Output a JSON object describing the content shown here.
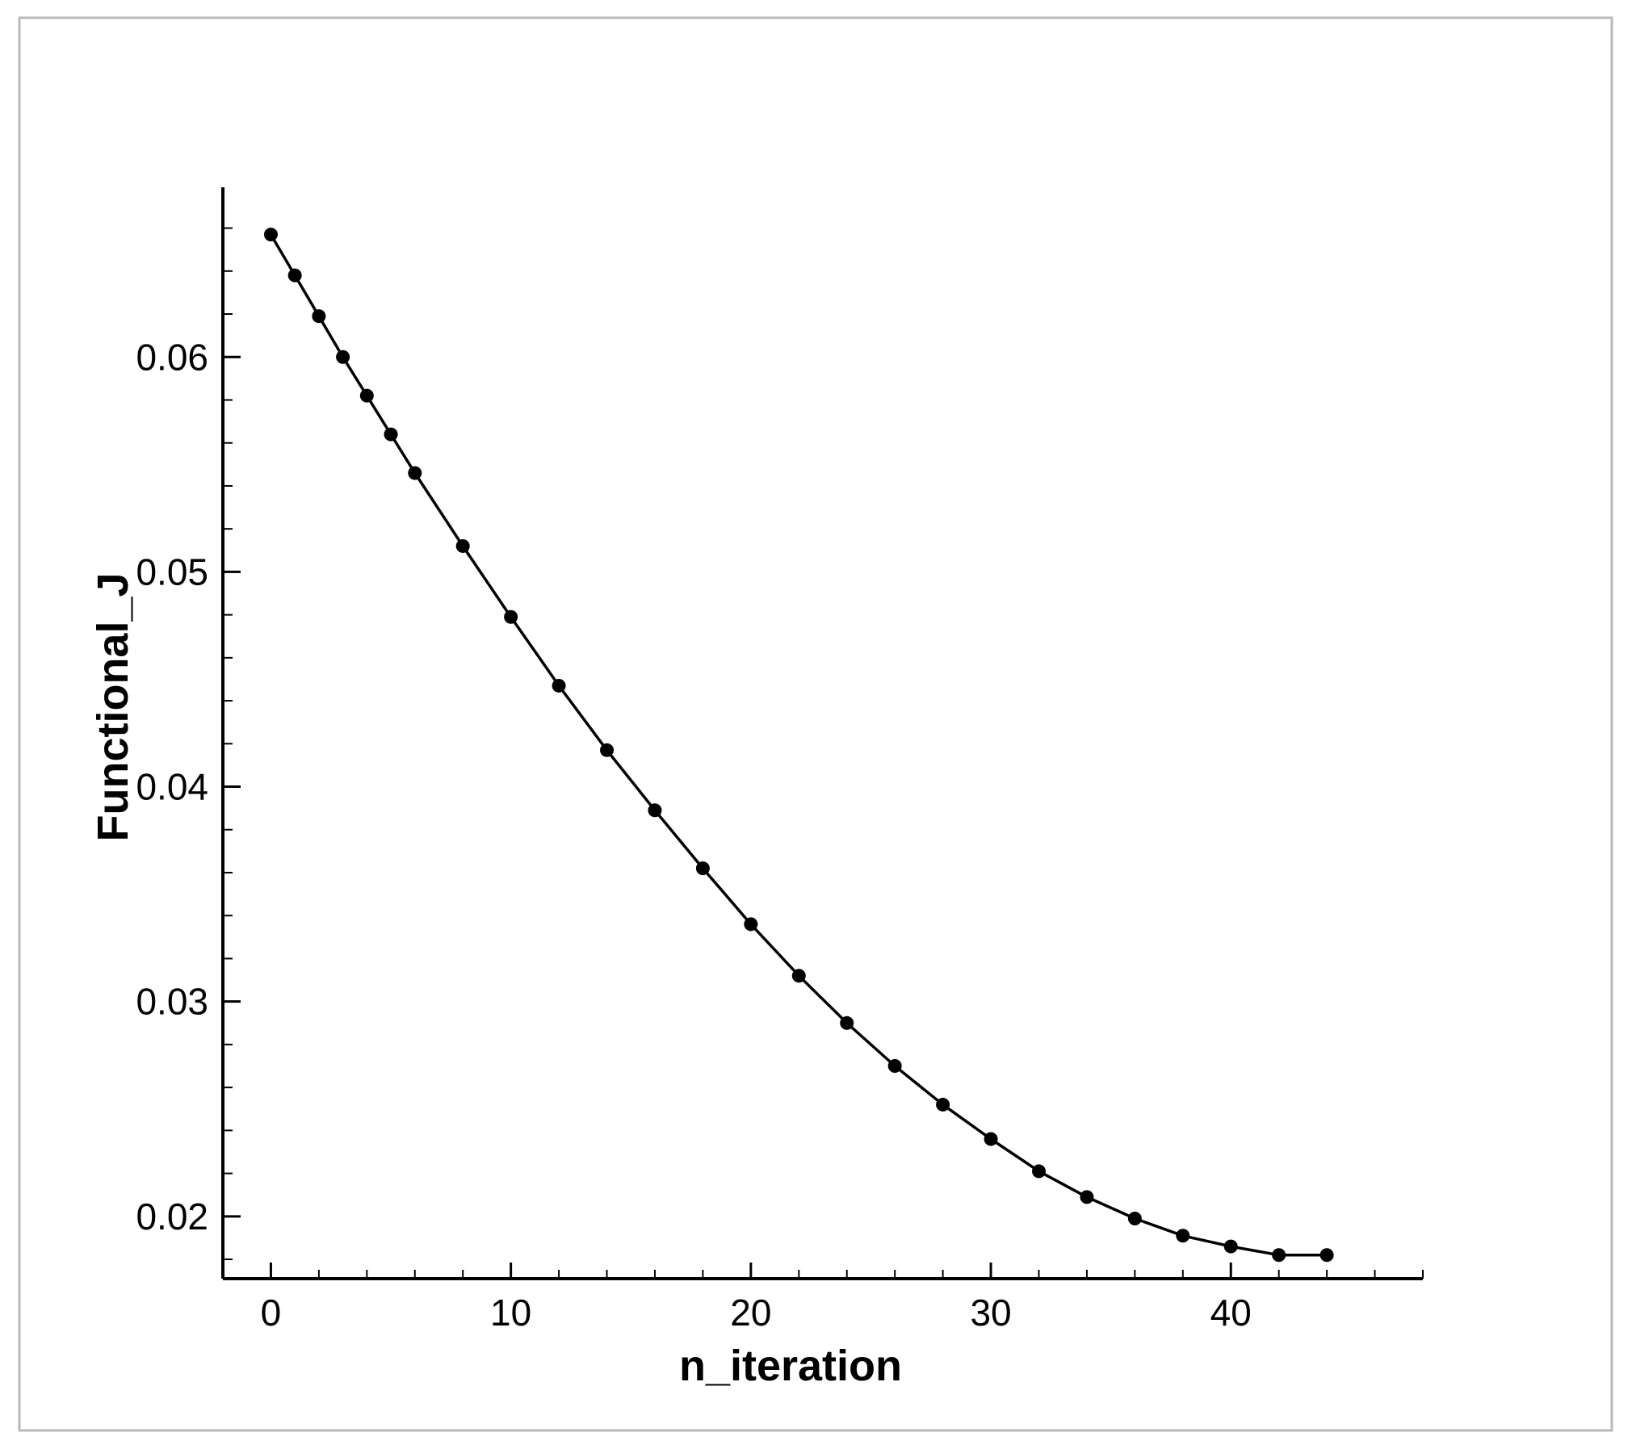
{
  "chart_data": {
    "type": "line",
    "title": "",
    "xlabel": "n_iteration",
    "ylabel": "Functional_J",
    "xlim": [
      -2,
      48
    ],
    "ylim": [
      0.0171,
      0.0679
    ],
    "x_ticks": [
      0,
      10,
      20,
      30,
      40
    ],
    "x_tick_labels": [
      "0",
      "10",
      "20",
      "30",
      "40"
    ],
    "y_ticks": [
      0.02,
      0.03,
      0.04,
      0.05,
      0.06
    ],
    "y_tick_labels": [
      "0.02",
      "0.03",
      "0.04",
      "0.05",
      "0.06"
    ],
    "grid": false,
    "legend": "none",
    "line_color": "#000000",
    "marker": "filled-circle",
    "series": [
      {
        "x": [
          0,
          1,
          2,
          3,
          4,
          5,
          6,
          8,
          10,
          12,
          14,
          16,
          18,
          20,
          22,
          24,
          26,
          28,
          30,
          32,
          34,
          36,
          38,
          40,
          42,
          44
        ],
        "y": [
          0.0657,
          0.0638,
          0.0619,
          0.06,
          0.0582,
          0.0564,
          0.0546,
          0.0512,
          0.0479,
          0.0447,
          0.0417,
          0.0389,
          0.0362,
          0.0336,
          0.0312,
          0.029,
          0.027,
          0.0252,
          0.0236,
          0.0221,
          0.0209,
          0.0199,
          0.0191,
          0.0186,
          0.0182,
          0.0182
        ]
      }
    ]
  }
}
